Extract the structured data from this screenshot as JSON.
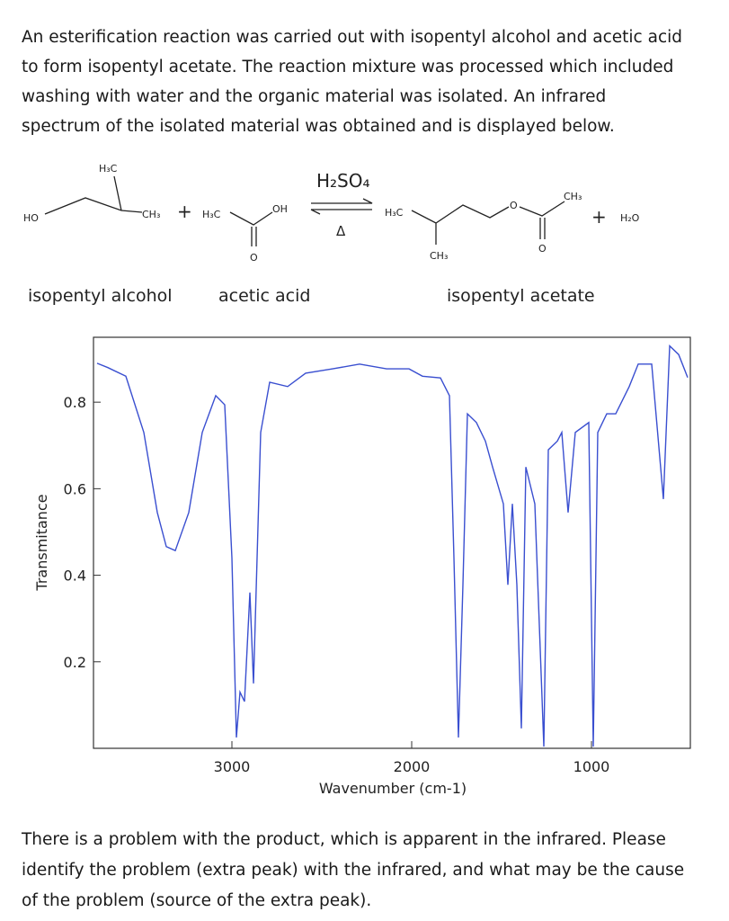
{
  "intro": {
    "lines": [
      "An esterification reaction was carried out with isopentyl alcohol and acetic acid",
      "to form isopentyl acetate. The reaction mixture was processed which included",
      "washing with water and the organic material was isolated. An infrared",
      "spectrum of the isolated material was obtained and is displayed below."
    ]
  },
  "scheme": {
    "alcohol": {
      "ho": "HO",
      "methyl_top": "H₃C",
      "methyl_end": "CH₃",
      "name": "isopentyl alcohol"
    },
    "plus1": "+",
    "acid": {
      "methyl": "H₃C",
      "oh": "OH",
      "o": "O",
      "name": "acetic acid"
    },
    "catalyst": "H₂SO₄",
    "heat": "Δ",
    "ester": {
      "methyl_left": "H₃C",
      "methyl_branch": "CH₃",
      "o_ether": "O",
      "o_carbonyl": "O",
      "methyl_right": "CH₃",
      "name": "isopentyl acetate"
    },
    "plus2": "+",
    "water": "H₂O"
  },
  "chart_data": {
    "type": "line",
    "x_label": "Wavenumber (cm-1)",
    "y_label": "Transmitance",
    "xlim": [
      3770,
      450
    ],
    "ylim": [
      0,
      0.95
    ],
    "xticks": [
      3000,
      2000,
      1000
    ],
    "yticks": [
      0.2,
      0.4,
      0.6,
      0.8
    ],
    "series": [
      {
        "name": "spectrum",
        "color": "#3a4fd0",
        "x": [
          3750,
          3690,
          3590,
          3490,
          3415,
          3365,
          3315,
          3240,
          3165,
          3090,
          3040,
          3000,
          2975,
          2955,
          2930,
          2900,
          2880,
          2840,
          2790,
          2690,
          2590,
          2440,
          2290,
          2140,
          2015,
          1940,
          1840,
          1790,
          1765,
          1740,
          1715,
          1690,
          1640,
          1590,
          1550,
          1490,
          1465,
          1440,
          1415,
          1390,
          1365,
          1315,
          1265,
          1240,
          1190,
          1165,
          1130,
          1090,
          1015,
          990,
          965,
          915,
          865,
          790,
          740,
          665,
          600,
          565,
          515,
          465
        ],
        "values": [
          0.89,
          0.88,
          0.86,
          0.73,
          0.545,
          0.466,
          0.457,
          0.545,
          0.73,
          0.815,
          0.794,
          0.44,
          0.025,
          0.13,
          0.108,
          0.36,
          0.15,
          0.73,
          0.846,
          0.836,
          0.867,
          0.877,
          0.888,
          0.877,
          0.877,
          0.86,
          0.856,
          0.815,
          0.44,
          0.025,
          0.378,
          0.773,
          0.753,
          0.71,
          0.65,
          0.565,
          0.378,
          0.565,
          0.378,
          0.046,
          0.65,
          0.565,
          0.004,
          0.69,
          0.71,
          0.73,
          0.545,
          0.73,
          0.753,
          0.004,
          0.73,
          0.773,
          0.773,
          0.836,
          0.888,
          0.888,
          0.576,
          0.93,
          0.91,
          0.857
        ]
      }
    ]
  },
  "question": {
    "lines": [
      "There is a problem with the product, which is apparent in the infrared. Please",
      "identify the problem (extra peak) with the infrared, and what may be the cause",
      "of the problem (source of the extra peak)."
    ]
  }
}
